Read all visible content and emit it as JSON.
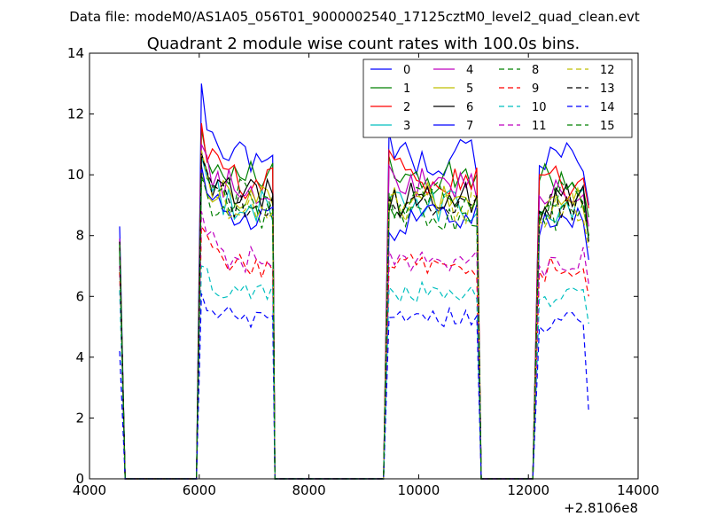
{
  "header": {
    "datafile": "Data file: modeM0/AS1A05_056T01_9000002540_17125cztM0_level2_quad_clean.evt"
  },
  "chart_data": {
    "type": "line",
    "title": "Quadrant 2 module wise count rates with 100.0s bins.",
    "xlabel": "",
    "ylabel": "",
    "x_offset_label": "+2.8106e8",
    "xlim": [
      4000,
      14000
    ],
    "ylim": [
      0,
      14
    ],
    "xticks": [
      4000,
      6000,
      8000,
      10000,
      12000,
      14000
    ],
    "yticks": [
      0,
      2,
      4,
      6,
      8,
      10,
      12,
      14
    ],
    "grid": false,
    "legend": {
      "placement": "top-right",
      "columns": 4
    },
    "segments": [
      {
        "start": 4550,
        "end": 4650,
        "rise": [
          4550
        ],
        "fall": [
          4650
        ]
      },
      {
        "start": 6040,
        "end": 7340,
        "rise": [
          5950,
          6040
        ],
        "fall": [
          7340,
          7380
        ]
      },
      {
        "start": 9460,
        "end": 11040,
        "rise": [
          9360,
          9460
        ],
        "fall": [
          11040,
          11140
        ]
      },
      {
        "start": 12200,
        "end": 13140,
        "rise": [
          12080,
          12200
        ],
        "fall": [
          13140
        ]
      }
    ],
    "zero_ranges": [
      [
        4650,
        5950
      ],
      [
        7380,
        9360
      ],
      [
        11140,
        12080
      ]
    ],
    "series": [
      {
        "name": "0",
        "color": "#0000ff",
        "dash": "solid",
        "level": 10.6,
        "values": [
          8.3,
          13.0,
          11.4,
          10.3,
          9.0
        ]
      },
      {
        "name": "1",
        "color": "#008000",
        "dash": "solid",
        "level": 9.9,
        "values": [
          7.8,
          11.5,
          10.6,
          9.8,
          8.6
        ]
      },
      {
        "name": "2",
        "color": "#ff0000",
        "dash": "solid",
        "level": 9.7,
        "values": [
          7.8,
          11.7,
          10.8,
          10.0,
          8.9
        ]
      },
      {
        "name": "3",
        "color": "#00bfbf",
        "dash": "solid",
        "level": 9.0,
        "values": [
          7.7,
          10.6,
          9.2,
          8.8,
          7.8
        ]
      },
      {
        "name": "4",
        "color": "#bf00bf",
        "dash": "solid",
        "level": 9.6,
        "values": [
          7.9,
          11.0,
          10.3,
          9.3,
          8.3
        ]
      },
      {
        "name": "5",
        "color": "#bfbf00",
        "dash": "solid",
        "level": 9.3,
        "values": [
          7.7,
          10.2,
          8.9,
          8.5,
          8.0
        ]
      },
      {
        "name": "6",
        "color": "#000000",
        "dash": "solid",
        "level": 9.3,
        "values": [
          7.8,
          10.7,
          8.8,
          8.4,
          7.8
        ]
      },
      {
        "name": "7",
        "color": "#0000ff",
        "dash": "solid",
        "level": 8.6,
        "values": [
          7.5,
          10.3,
          8.1,
          8.0,
          7.2
        ]
      },
      {
        "name": "8",
        "color": "#008000",
        "dash": "dashed",
        "level": 8.6,
        "values": [
          7.7,
          10.0,
          9.4,
          8.8,
          8.0
        ]
      },
      {
        "name": "9",
        "color": "#ff0000",
        "dash": "dashed",
        "level": 7.0,
        "values": [
          6.8,
          8.3,
          7.0,
          6.8,
          6.0
        ]
      },
      {
        "name": "10",
        "color": "#00bfbf",
        "dash": "dashed",
        "level": 6.1,
        "values": [
          6.2,
          7.0,
          6.3,
          5.9,
          5.1
        ]
      },
      {
        "name": "11",
        "color": "#bf00bf",
        "dash": "dashed",
        "level": 7.2,
        "values": [
          7.0,
          8.8,
          7.5,
          7.0,
          6.4
        ]
      },
      {
        "name": "12",
        "color": "#bfbf00",
        "dash": "dashed",
        "level": 8.9,
        "values": [
          7.6,
          10.8,
          9.3,
          8.5,
          7.6
        ]
      },
      {
        "name": "13",
        "color": "#000000",
        "dash": "dashed",
        "level": 9.0,
        "values": [
          7.6,
          10.6,
          9.2,
          8.8,
          8.0
        ]
      },
      {
        "name": "14",
        "color": "#0000ff",
        "dash": "dashed",
        "level": 5.3,
        "values": [
          4.2,
          6.1,
          5.3,
          5.0,
          2.2
        ]
      },
      {
        "name": "15",
        "color": "#008000",
        "dash": "dashed",
        "level": 9.3,
        "values": [
          7.5,
          9.8,
          9.0,
          8.6,
          7.9
        ]
      }
    ]
  }
}
